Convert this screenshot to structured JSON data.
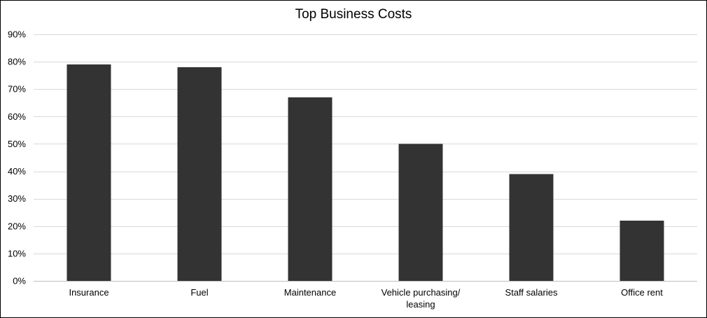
{
  "chart_data": {
    "type": "bar",
    "title": "Top Business Costs",
    "xlabel": "",
    "ylabel": "",
    "categories": [
      "Insurance",
      "Fuel",
      "Maintenance",
      "Vehicle purchasing/ leasing",
      "Staff salaries",
      "Office rent"
    ],
    "category_label_lines": [
      [
        "Insurance"
      ],
      [
        "Fuel"
      ],
      [
        "Maintenance"
      ],
      [
        "Vehicle purchasing/",
        "leasing"
      ],
      [
        "Staff salaries"
      ],
      [
        "Office rent"
      ]
    ],
    "values": [
      79,
      78,
      67,
      50,
      39,
      22
    ],
    "value_format": "percent",
    "ylim": [
      0,
      90
    ],
    "y_ticks": [
      0,
      10,
      20,
      30,
      40,
      50,
      60,
      70,
      80,
      90
    ],
    "y_tick_labels": [
      "0%",
      "10%",
      "20%",
      "30%",
      "40%",
      "50%",
      "60%",
      "70%",
      "80%",
      "90%"
    ],
    "grid": true,
    "legend": "none",
    "colors": {
      "bar": "#333333",
      "grid": "#d9d9d9",
      "axis": "#bfbfbf",
      "border": "#000000"
    }
  }
}
